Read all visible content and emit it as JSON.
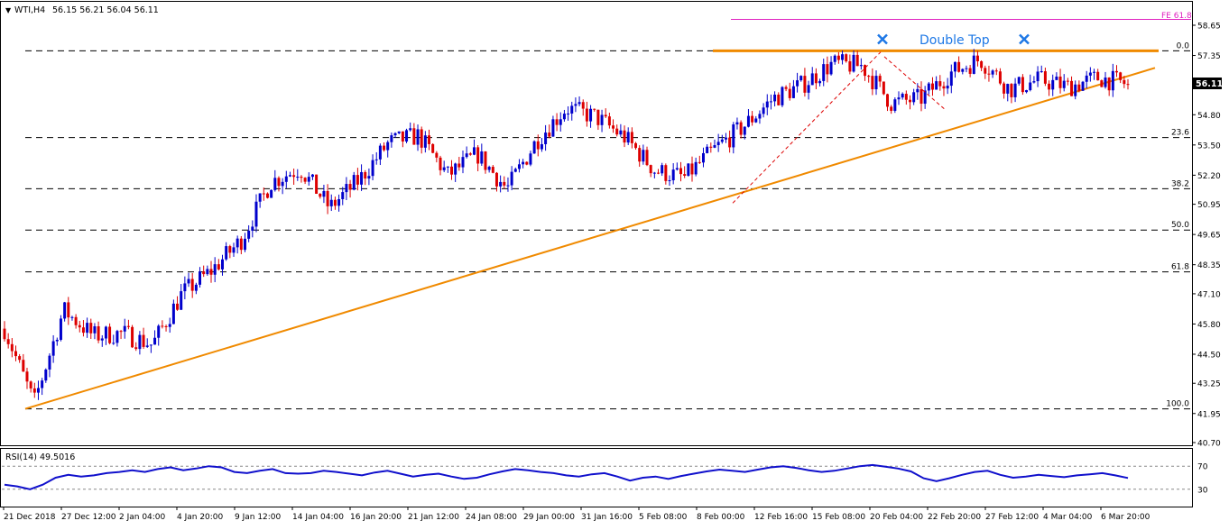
{
  "header": {
    "symbol_timeframe": "WTI,H4",
    "ohlc": "56.15 56.21 56.04 56.11"
  },
  "rsi_header": "RSI(14) 49.5016",
  "annotations": {
    "double_top": "Double Top",
    "fe_label": "FE 61.8",
    "current_price": "56.11"
  },
  "colors": {
    "up_candle": "#0000cc",
    "down_candle": "#dd0000",
    "trendline": "#f08a00",
    "fe_line": "#e020c0",
    "rsi_line": "#1010cc",
    "marker": "#1e78e6",
    "text": "#000000"
  },
  "chart_data": [
    {
      "type": "candlestick",
      "instrument": "WTI",
      "timeframe": "H4",
      "y_axis_ticks": [
        "58.65",
        "57.35",
        "56.11",
        "54.80",
        "53.50",
        "52.20",
        "50.95",
        "49.65",
        "48.35",
        "47.10",
        "45.80",
        "44.50",
        "43.25",
        "41.95",
        "40.70"
      ],
      "ylim": [
        40.7,
        58.65
      ],
      "x_axis_ticks": [
        "21 Dec 2018",
        "27 Dec 12:00",
        "2 Jan 04:00",
        "4 Jan 20:00",
        "9 Jan 12:00",
        "14 Jan 04:00",
        "16 Jan 20:00",
        "21 Jan 12:00",
        "24 Jan 08:00",
        "29 Jan 00:00",
        "31 Jan 16:00",
        "5 Feb 08:00",
        "8 Feb 00:00",
        "12 Feb 16:00",
        "15 Feb 08:00",
        "20 Feb 04:00",
        "22 Feb 20:00",
        "27 Feb 12:00",
        "4 Mar 04:00",
        "6 Mar 20:00"
      ],
      "fib_levels": [
        {
          "label": "0.0",
          "price": 57.55
        },
        {
          "label": "23.6",
          "price": 53.82
        },
        {
          "label": "38.2",
          "price": 51.62
        },
        {
          "label": "50.0",
          "price": 49.84
        },
        {
          "label": "61.8",
          "price": 48.04
        },
        {
          "label": "100.0",
          "price": 42.15
        },
        {
          "label": "FE 61.8",
          "price": 58.9
        }
      ],
      "resistance": {
        "price": 57.55,
        "label": "Double Top"
      },
      "support_trendline": {
        "from": {
          "x": "21 Dec 2018",
          "y": 42.15
        },
        "to": {
          "x": "7 Mar",
          "y": 56.35
        }
      },
      "last_price": 56.11,
      "price_path": [
        {
          "x": "21 Dec 2018",
          "close": 45.6
        },
        {
          "x": "24 Dec",
          "close": 42.4
        },
        {
          "x": "26 Dec",
          "close": 46.4
        },
        {
          "x": "28 Dec",
          "close": 45.3
        },
        {
          "x": "31 Dec",
          "close": 45.4
        },
        {
          "x": "2 Jan",
          "close": 44.9
        },
        {
          "x": "3 Jan",
          "close": 47.1
        },
        {
          "x": "4 Jan",
          "close": 48.1
        },
        {
          "x": "7 Jan",
          "close": 49.4
        },
        {
          "x": "9 Jan",
          "close": 51.9
        },
        {
          "x": "10 Jan",
          "close": 52.5
        },
        {
          "x": "14 Jan",
          "close": 50.8
        },
        {
          "x": "16 Jan",
          "close": 52.0
        },
        {
          "x": "18 Jan",
          "close": 53.6
        },
        {
          "x": "21 Jan",
          "close": 53.9
        },
        {
          "x": "23 Jan",
          "close": 52.2
        },
        {
          "x": "25 Jan",
          "close": 53.1
        },
        {
          "x": "28 Jan",
          "close": 51.6
        },
        {
          "x": "30 Jan",
          "close": 53.7
        },
        {
          "x": "1 Feb",
          "close": 55.1
        },
        {
          "x": "4 Feb",
          "close": 54.7
        },
        {
          "x": "6 Feb",
          "close": 53.8
        },
        {
          "x": "8 Feb",
          "close": 52.4
        },
        {
          "x": "11 Feb",
          "close": 52.1
        },
        {
          "x": "12 Feb",
          "close": 53.3
        },
        {
          "x": "14 Feb",
          "close": 54.3
        },
        {
          "x": "15 Feb",
          "close": 55.5
        },
        {
          "x": "18 Feb",
          "close": 56.1
        },
        {
          "x": "20 Feb",
          "close": 57.0
        },
        {
          "x": "21 Feb",
          "close": 56.9
        },
        {
          "x": "22 Feb",
          "close": 55.3
        },
        {
          "x": "25 Feb",
          "close": 55.5
        },
        {
          "x": "26 Feb",
          "close": 56.6
        },
        {
          "x": "28 Feb",
          "close": 57.2
        },
        {
          "x": "1 Mar",
          "close": 55.9
        },
        {
          "x": "4 Mar",
          "close": 56.3
        },
        {
          "x": "5 Mar",
          "close": 56.0
        },
        {
          "x": "6 Mar",
          "close": 56.4
        },
        {
          "x": "7 Mar",
          "close": 56.11
        }
      ]
    },
    {
      "type": "line",
      "indicator": "RSI(14)",
      "last_value": 49.5016,
      "y_axis_ticks": [
        "70",
        "30"
      ],
      "ylim": [
        0,
        100
      ],
      "levels": [
        70,
        30
      ],
      "values": [
        38,
        35,
        30,
        38,
        50,
        55,
        52,
        54,
        58,
        60,
        63,
        60,
        65,
        68,
        63,
        66,
        70,
        68,
        60,
        58,
        62,
        65,
        58,
        57,
        58,
        62,
        60,
        57,
        54,
        59,
        62,
        57,
        52,
        55,
        57,
        52,
        48,
        50,
        56,
        61,
        65,
        63,
        60,
        58,
        54,
        52,
        56,
        58,
        52,
        45,
        50,
        52,
        48,
        53,
        57,
        61,
        64,
        62,
        60,
        64,
        68,
        70,
        67,
        63,
        60,
        62,
        66,
        70,
        72,
        69,
        66,
        61,
        49,
        44,
        49,
        55,
        60,
        62,
        55,
        50,
        52,
        55,
        53,
        51,
        54,
        56,
        58,
        54,
        49.5
      ]
    }
  ]
}
